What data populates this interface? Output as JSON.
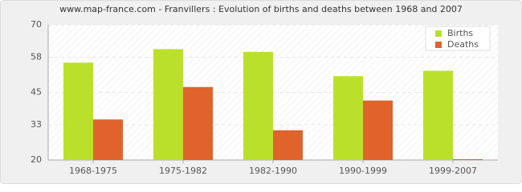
{
  "chart_data": {
    "type": "bar",
    "title": "www.map-france.com - Franvillers : Evolution of births and deaths between 1968 and 2007",
    "categories": [
      "1968-1975",
      "1975-1982",
      "1982-1990",
      "1990-1999",
      "1999-2007"
    ],
    "series": [
      {
        "name": "Births",
        "color": "#bbe02c",
        "values": [
          56,
          61,
          60,
          51,
          53
        ]
      },
      {
        "name": "Deaths",
        "color": "#e0632c",
        "values": [
          35,
          47,
          31,
          42,
          20
        ]
      }
    ],
    "ylim": [
      20,
      70
    ],
    "yticks": [
      20,
      33,
      45,
      58,
      70
    ],
    "grid": true,
    "legend": "top-right"
  }
}
